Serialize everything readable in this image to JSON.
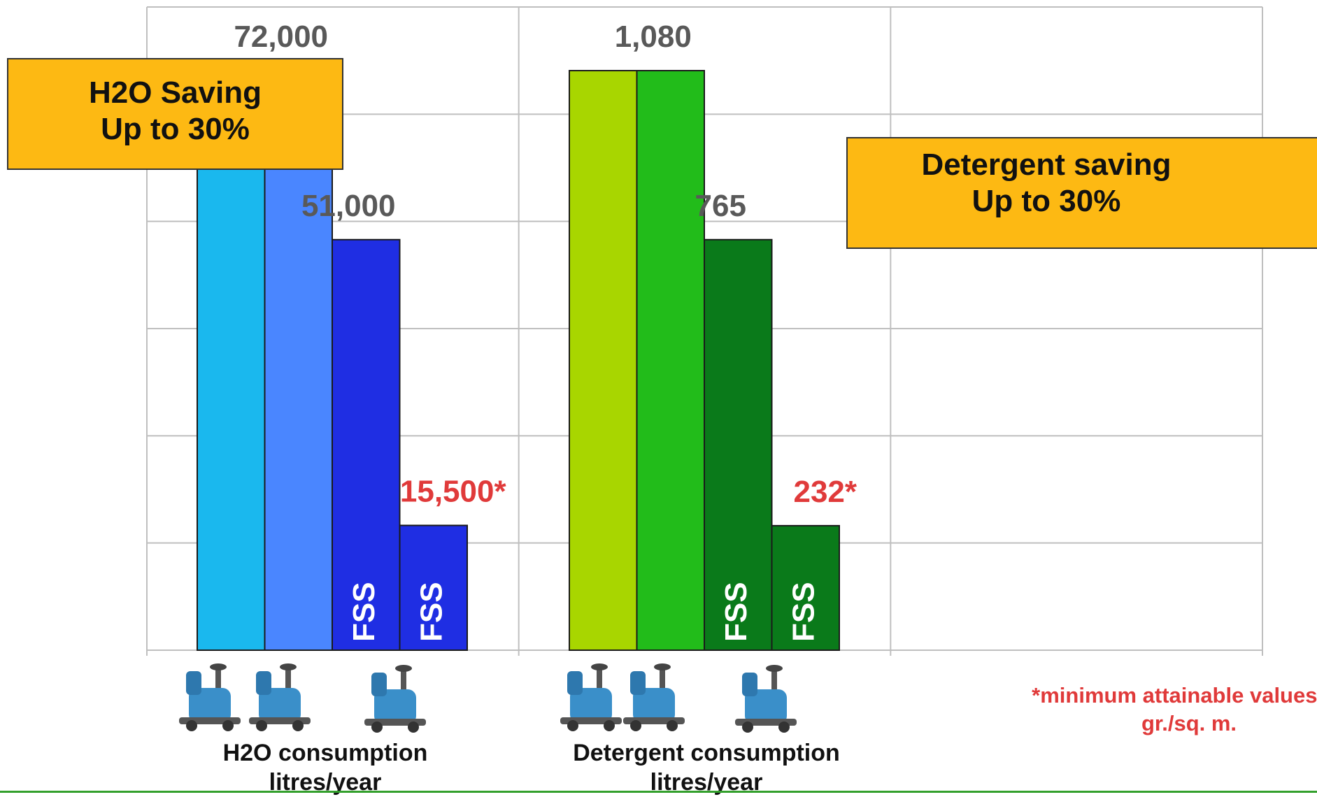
{
  "colors": {
    "callout_bg": "#FDB913",
    "highlight_label": "#E03A3A",
    "value_label": "#595959",
    "bar_text": "#FFFFFF"
  },
  "callouts": {
    "h2o": {
      "line1": "H2O Saving",
      "line2": "Up to 30%"
    },
    "detergent": {
      "line1": "Detergent saving",
      "line2": "Up to 30%"
    }
  },
  "footnote": {
    "line1": "*minimum attainable values wi",
    "line2": "gr./sq. m."
  },
  "icons": [
    "ride-on-scrubber-icon"
  ],
  "chart_data": {
    "type": "bar",
    "ylim": [
      0,
      6
    ],
    "grid": true,
    "groups": [
      {
        "xlabel_line1": "H2O consumption",
        "xlabel_line2": "litres/year",
        "bars": [
          {
            "value": 72000,
            "label": "",
            "color": "#1AB8EE",
            "inner_text": "",
            "highlight": false
          },
          {
            "value": 72000,
            "label": "72,000",
            "color": "#4A86FF",
            "inner_text": "",
            "highlight": false
          },
          {
            "value": 51000,
            "label": "51,000",
            "color": "#1F2EE3",
            "inner_text": "FSS",
            "highlight": false
          },
          {
            "value": 15500,
            "label": "15,500*",
            "color": "#1F2EE3",
            "inner_text": "FSS",
            "highlight": true
          }
        ]
      },
      {
        "xlabel_line1": "Detergent consumption",
        "xlabel_line2": "litres/year",
        "bars": [
          {
            "value": 1080,
            "label": "",
            "color": "#A8D600",
            "inner_text": "",
            "highlight": false
          },
          {
            "value": 1080,
            "label": "1,080",
            "color": "#22BC1A",
            "inner_text": "",
            "highlight": false
          },
          {
            "value": 765,
            "label": "765",
            "color": "#0A7A1A",
            "inner_text": "FSS",
            "highlight": false
          },
          {
            "value": 232,
            "label": "232*",
            "color": "#0A7A1A",
            "inner_text": "FSS",
            "highlight": true
          }
        ]
      }
    ]
  }
}
